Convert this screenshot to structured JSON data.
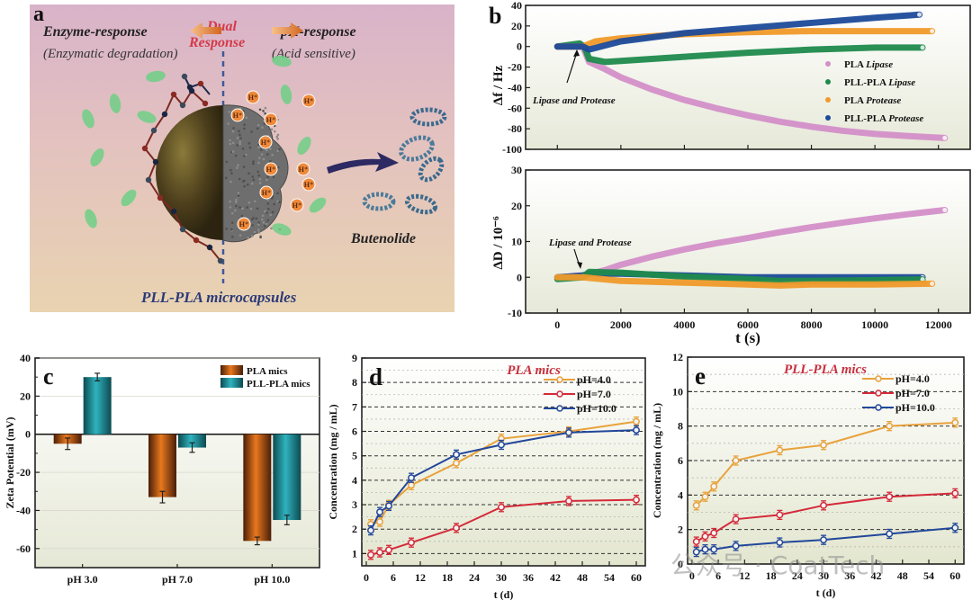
{
  "panel_a": {
    "letter": "a",
    "left_title": "Enzyme-response",
    "left_subtitle": "(Enzymatic degradation)",
    "center_title_line1": "Dual",
    "center_title_line2": "Response",
    "right_title": "pH-response",
    "right_subtitle": "(Acid sensitive)",
    "product_label": "Butenolide",
    "capsule_label": "PLL-PLA microcapsules",
    "proton_label": "H⁺",
    "colors": {
      "dual": "#d33a4a",
      "capsule_label": "#2c3a78",
      "bacteria": "#6fcf86",
      "arrow": "#e98a3c",
      "proton": "#f08a3a"
    }
  },
  "watermark": "公众号 · CoatTech",
  "chart_data": [
    {
      "id": "b-top",
      "panel_letter": "b",
      "type": "scatter",
      "title": "",
      "xlabel": "",
      "ylabel": "Δf / Hz",
      "xlim": [
        -1000,
        13000
      ],
      "ylim": [
        -100,
        40
      ],
      "xticks": [
        0,
        2000,
        4000,
        6000,
        8000,
        10000,
        12000
      ],
      "yticks": [
        40,
        20,
        0,
        -20,
        -40,
        -60,
        -80,
        -100
      ],
      "annotation": "Lipase and Protease",
      "annotation_at": [
        800,
        0
      ],
      "legend": "right",
      "series": [
        {
          "name": "PLA Lipase",
          "name_plain": "PLA",
          "name_italic": "Lipase",
          "color": "#d38fc8",
          "x": [
            0,
            800,
            1000,
            1500,
            2000,
            3000,
            4000,
            5000,
            6000,
            7000,
            8000,
            9000,
            10000,
            11000,
            12200
          ],
          "y": [
            0,
            0,
            -15,
            -22,
            -30,
            -42,
            -52,
            -60,
            -67,
            -73,
            -78,
            -82,
            -85,
            -87,
            -89
          ]
        },
        {
          "name": "PLL-PLA Lipase",
          "name_plain": "PLL-PLA",
          "name_italic": "Lipase",
          "color": "#1f8a4c",
          "x": [
            0,
            700,
            850,
            1000,
            1500,
            2000,
            4000,
            6000,
            8000,
            10000,
            11500
          ],
          "y": [
            0,
            3,
            0,
            -12,
            -15,
            -14,
            -10,
            -6,
            -3,
            -1,
            -1
          ]
        },
        {
          "name": "PLA Protease",
          "name_plain": "PLA",
          "name_italic": "Protease",
          "color": "#f09a2a",
          "x": [
            0,
            800,
            1200,
            2000,
            3000,
            4000,
            5000,
            6000,
            8000,
            10000,
            11800
          ],
          "y": [
            0,
            0,
            5,
            8,
            10,
            12,
            13,
            14,
            15,
            15,
            15
          ]
        },
        {
          "name": "PLL-PLA Protease",
          "name_plain": "PLL-PLA",
          "name_italic": "Protease",
          "color": "#1c4a9a",
          "x": [
            0,
            800,
            1000,
            2000,
            4000,
            6000,
            8000,
            10000,
            11400
          ],
          "y": [
            0,
            0,
            -3,
            5,
            13,
            18,
            23,
            28,
            31
          ]
        }
      ]
    },
    {
      "id": "b-bottom",
      "type": "scatter",
      "title": "",
      "xlabel": "t (s)",
      "ylabel": "ΔD / 10⁻⁶",
      "xlim": [
        -1000,
        13000
      ],
      "ylim": [
        -10,
        30
      ],
      "xticks": [
        0,
        2000,
        4000,
        6000,
        8000,
        10000,
        12000
      ],
      "yticks": [
        30,
        20,
        10,
        0,
        -10
      ],
      "annotation": "Lipase and Protease",
      "annotation_at": [
        800,
        1
      ],
      "series": [
        {
          "name": "PLA Lipase",
          "color": "#d38fc8",
          "x": [
            0,
            800,
            1500,
            2000,
            3000,
            4000,
            5000,
            6000,
            7000,
            8000,
            9000,
            10000,
            11000,
            12200
          ],
          "y": [
            0,
            0.5,
            2,
            3.5,
            5.8,
            7.8,
            9.5,
            11,
            12.6,
            14,
            15.3,
            16.5,
            17.6,
            18.8
          ]
        },
        {
          "name": "PLL-PLA Protease",
          "color": "#1c4a9a",
          "x": [
            0,
            800,
            1000,
            2000,
            4000,
            6000,
            8000,
            10000,
            11500
          ],
          "y": [
            0,
            0.5,
            1,
            1,
            0.5,
            0,
            0,
            0,
            0
          ]
        },
        {
          "name": "PLL-PLA Lipase",
          "color": "#1f8a4c",
          "x": [
            0,
            800,
            1000,
            2000,
            4000,
            6000,
            7000,
            8000,
            10000,
            11500
          ],
          "y": [
            -0.5,
            0,
            1.5,
            1.3,
            0.2,
            -0.5,
            -1,
            -1,
            -0.8,
            -0.6
          ]
        },
        {
          "name": "PLA Protease",
          "color": "#f09a2a",
          "x": [
            0,
            800,
            2000,
            4000,
            6000,
            7000,
            8000,
            10000,
            11800
          ],
          "y": [
            0,
            0,
            -1,
            -1.5,
            -2,
            -2.3,
            -2,
            -2,
            -1.8
          ]
        }
      ]
    },
    {
      "id": "c",
      "panel_letter": "c",
      "type": "bar",
      "title": "",
      "xlabel": "",
      "ylabel": "Zeta Potential (mV)",
      "ylim": [
        -70,
        40
      ],
      "yticks": [
        40,
        20,
        0,
        -20,
        -40,
        -60
      ],
      "categories": [
        "pH 3.0",
        "pH 7.0",
        "pH 10.0"
      ],
      "legend": "top-right",
      "series": [
        {
          "name": "PLA mics",
          "color": "#e8781e",
          "values": [
            -5,
            -33,
            -56
          ],
          "errors": [
            3,
            3,
            2
          ]
        },
        {
          "name": "PLL-PLA mics",
          "color": "#2fb3bf",
          "values": [
            30,
            -7,
            -45
          ],
          "errors": [
            2,
            2.5,
            2.5
          ]
        }
      ]
    },
    {
      "id": "d",
      "panel_letter": "d",
      "type": "line",
      "title": "PLA mics",
      "xlabel": "t (d)",
      "ylabel": "Concentration (mg / mL)",
      "xlim": [
        -1,
        62
      ],
      "ylim": [
        0.5,
        9
      ],
      "xticks": [
        0,
        6,
        12,
        18,
        24,
        30,
        36,
        42,
        48,
        54,
        60
      ],
      "yticks": [
        1,
        2,
        3,
        4,
        5,
        6,
        7,
        8,
        9
      ],
      "legend": "top-right",
      "x": [
        1,
        3,
        5,
        10,
        20,
        30,
        45,
        60
      ],
      "series": [
        {
          "name": "pH=4.0",
          "color": "#e8a23c",
          "values": [
            2.2,
            2.3,
            3.0,
            3.8,
            4.7,
            5.7,
            6.0,
            6.4
          ]
        },
        {
          "name": "pH=7.0",
          "color": "#d42a3a",
          "values": [
            0.95,
            1.05,
            1.15,
            1.45,
            2.05,
            2.9,
            3.15,
            3.2
          ]
        },
        {
          "name": "pH=10.0",
          "color": "#22479a",
          "values": [
            1.95,
            2.7,
            2.95,
            4.1,
            5.05,
            5.45,
            5.95,
            6.05
          ]
        }
      ]
    },
    {
      "id": "e",
      "panel_letter": "e",
      "type": "line",
      "title": "PLL-PLA mics",
      "xlabel": "t (d)",
      "ylabel": "Concentration (mg / mL)",
      "xlim": [
        -1,
        62
      ],
      "ylim": [
        0,
        12
      ],
      "xticks": [
        0,
        6,
        12,
        18,
        24,
        30,
        36,
        42,
        48,
        54,
        60
      ],
      "yticks": [
        0,
        2,
        4,
        6,
        8,
        10,
        12
      ],
      "legend": "top-right",
      "x": [
        1,
        3,
        5,
        10,
        20,
        30,
        45,
        60
      ],
      "series": [
        {
          "name": "pH=4.0",
          "color": "#e8a23c",
          "values": [
            3.4,
            3.9,
            4.5,
            6.0,
            6.6,
            6.9,
            8.0,
            8.2
          ]
        },
        {
          "name": "pH=7.0",
          "color": "#d42a3a",
          "values": [
            1.3,
            1.6,
            1.8,
            2.6,
            2.85,
            3.4,
            3.9,
            4.1
          ]
        },
        {
          "name": "pH=10.0",
          "color": "#22479a",
          "values": [
            0.7,
            0.85,
            0.85,
            1.05,
            1.25,
            1.4,
            1.75,
            2.1
          ]
        }
      ]
    }
  ]
}
